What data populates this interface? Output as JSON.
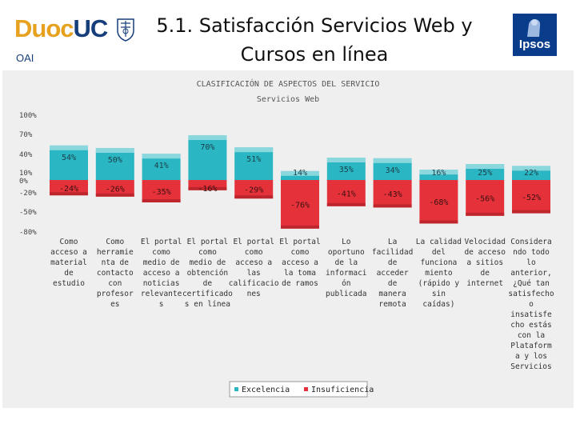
{
  "header": {
    "logo_text_1": "Duoc",
    "logo_text_2": "UC",
    "logo_sub": "OAI",
    "title_line_1": "5.1. Satisfacción Servicios Web y",
    "title_line_2": "Cursos en línea",
    "partner_logo": "Ipsos"
  },
  "colors": {
    "excellence": "#2ab6c2",
    "insufficiency": "#e5323a",
    "brand_blue": "#163e7a",
    "brand_orange": "#e6a21f"
  },
  "chart_data": {
    "type": "bar",
    "title": "CLASIFICACIÓN DE ASPECTOS DEL SERVICIO",
    "subtitle": "Servicios Web",
    "y_ticks": [
      "100%",
      "70%",
      "40%",
      "10%",
      "0%",
      "-20%",
      "-50%",
      "-80%"
    ],
    "categories": [
      [
        "Como",
        "acceso a",
        "material",
        "de",
        "estudio"
      ],
      [
        "Como",
        "herramie",
        "nta de",
        "contacto",
        "con",
        "profesor",
        "es"
      ],
      [
        "El portal",
        "como",
        "medio de",
        "acceso a",
        "noticias",
        "relevante",
        "s"
      ],
      [
        "El portal",
        "como",
        "medio de",
        "obtención",
        "de",
        "certificado",
        "s en línea"
      ],
      [
        "El portal",
        "como",
        "acceso a",
        "las",
        "calificacio",
        "nes"
      ],
      [
        "El portal",
        "como",
        "acceso a",
        "la toma",
        "de ramos"
      ],
      [
        "Lo",
        "oportuno",
        "de la",
        "informaci",
        "ón",
        "publicada"
      ],
      [
        "La",
        "facilidad",
        "de",
        "acceder",
        "de",
        "manera",
        "remota"
      ],
      [
        "La calidad",
        "del",
        "funciona",
        "miento",
        "(rápido y",
        "sin",
        "caídas)"
      ],
      [
        "Velocidad",
        "de acceso",
        "a sitios",
        "de",
        "internet"
      ],
      [
        "Considera",
        "ndo todo",
        "lo",
        "anterior,",
        "¿Qué tan",
        "satisfecho",
        "o",
        "insatisfe",
        "cho estás",
        "con la",
        "Plataform",
        "a y los",
        "Servicios"
      ]
    ],
    "series": [
      {
        "name": "Excelencia",
        "values": [
          54,
          50,
          41,
          70,
          51,
          14,
          35,
          34,
          16,
          25,
          22
        ],
        "labels": [
          "54%",
          "50%",
          "41%",
          "70%",
          "51%",
          "14%",
          "35%",
          "34%",
          "16%",
          "25%",
          "22%"
        ]
      },
      {
        "name": "Insuficiencia",
        "values": [
          -24,
          -26,
          -35,
          -16,
          -29,
          -76,
          -41,
          -43,
          -68,
          -56,
          -52
        ],
        "labels": [
          "-24%",
          "-26%",
          "-35%",
          "-16%",
          "-29%",
          "-76%",
          "-41%",
          "-43%",
          "-68%",
          "-56%",
          "-52%"
        ]
      }
    ],
    "legend_position": "bottom-center"
  }
}
